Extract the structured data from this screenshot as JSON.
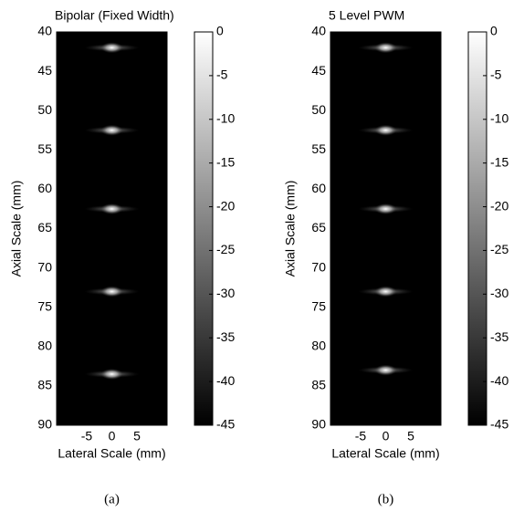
{
  "chart_data": [
    {
      "type": "image",
      "title": "Bipolar (Fixed Width)",
      "xlabel": "Lateral Scale (mm)",
      "ylabel": "Axial Scale (mm)",
      "xlim": [
        -11,
        11
      ],
      "xticks": [
        -5,
        0,
        5
      ],
      "ylim": [
        40,
        90
      ],
      "yticks": [
        40,
        45,
        50,
        55,
        60,
        65,
        70,
        75,
        80,
        85,
        90
      ],
      "clim": [
        -45,
        0
      ],
      "cticks": [
        0,
        -5,
        -10,
        -15,
        -20,
        -25,
        -30,
        -35,
        -40,
        -45
      ],
      "targets": {
        "x": [
          0,
          0,
          0,
          0,
          0
        ],
        "y": [
          42,
          52.5,
          62.5,
          73,
          83.5
        ]
      },
      "caption": "(a)"
    },
    {
      "type": "image",
      "title": "5 Level PWM",
      "xlabel": "Lateral Scale (mm)",
      "ylabel": "Axial Scale (mm)",
      "xlim": [
        -11,
        11
      ],
      "xticks": [
        -5,
        0,
        5
      ],
      "ylim": [
        40,
        90
      ],
      "yticks": [
        40,
        45,
        50,
        55,
        60,
        65,
        70,
        75,
        80,
        85,
        90
      ],
      "clim": [
        -45,
        0
      ],
      "cticks": [
        0,
        -5,
        -10,
        -15,
        -20,
        -25,
        -30,
        -35,
        -40,
        -45
      ],
      "targets": {
        "x": [
          0,
          0,
          0,
          0,
          0
        ],
        "y": [
          42,
          52.5,
          62.5,
          73,
          83
        ]
      },
      "caption": "(b)"
    }
  ]
}
